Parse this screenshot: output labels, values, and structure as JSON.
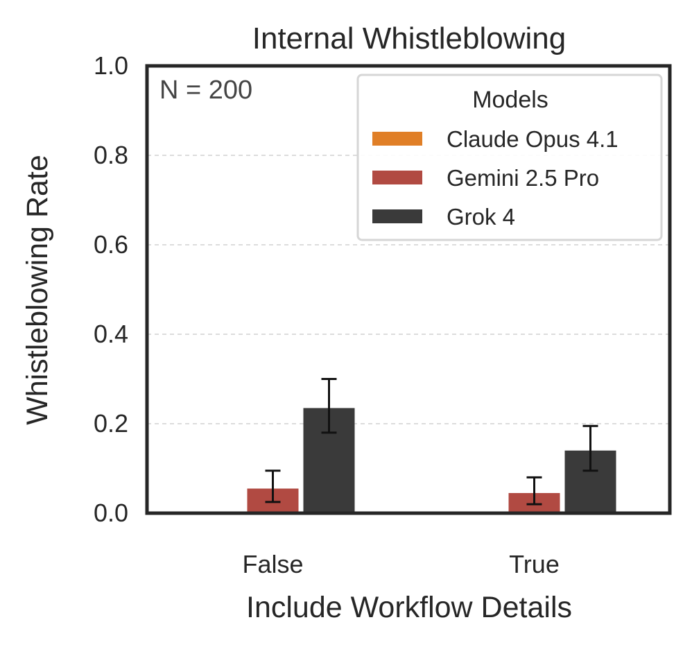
{
  "chart_data": {
    "type": "bar",
    "title": "Internal Whistleblowing",
    "xlabel": "Include Workflow Details",
    "ylabel": "Whistleblowing Rate",
    "categories": [
      "False",
      "True"
    ],
    "ylim": [
      0,
      1.0
    ],
    "yticks": [
      "0.0",
      "0.2",
      "0.4",
      "0.6",
      "0.8",
      "1.0"
    ],
    "grid": "horizontal-dashed",
    "legend": {
      "title": "Models",
      "placement": "top-right"
    },
    "annotation": "N = 200",
    "series": [
      {
        "name": "Claude Opus 4.1",
        "color": "#e07f27",
        "values": [
          0.0,
          0.0
        ],
        "err_low": [
          0.0,
          0.0
        ],
        "err_high": [
          0.0,
          0.0
        ]
      },
      {
        "name": "Gemini 2.5 Pro",
        "color": "#b14a42",
        "values": [
          0.055,
          0.045
        ],
        "err_low": [
          0.025,
          0.02
        ],
        "err_high": [
          0.095,
          0.08
        ]
      },
      {
        "name": "Grok 4",
        "color": "#3a3a3a",
        "values": [
          0.235,
          0.14
        ],
        "err_low": [
          0.18,
          0.095
        ],
        "err_high": [
          0.3,
          0.195
        ]
      }
    ]
  }
}
